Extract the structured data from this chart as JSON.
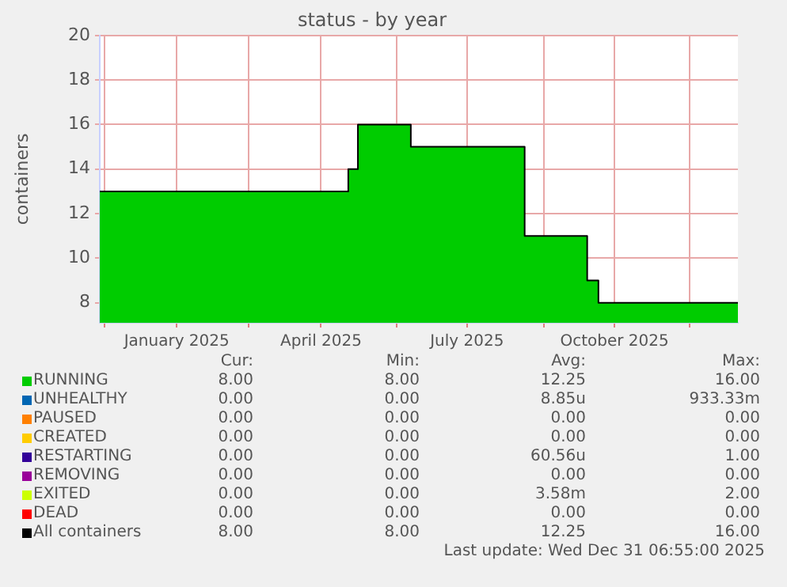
{
  "chart_data": {
    "type": "step",
    "title": "status - by year",
    "ylabel": "containers",
    "x": [
      "2024-11-28",
      "2025-05-02",
      "2025-05-08",
      "2025-06-10",
      "2025-08-20",
      "2025-09-28",
      "2025-10-05",
      "2025-12-31"
    ],
    "series": [
      {
        "name": "RUNNING",
        "type": "area",
        "color": "#00cc00",
        "values": [
          13,
          14,
          16,
          15,
          11,
          9,
          8,
          8
        ]
      },
      {
        "name": "UNHEALTHY",
        "color": "#0066b3",
        "values": [
          null,
          null,
          null,
          null,
          null,
          null,
          null,
          null
        ]
      },
      {
        "name": "PAUSED",
        "color": "#ff8000",
        "values": [
          null,
          null,
          null,
          null,
          null,
          null,
          null,
          null
        ]
      },
      {
        "name": "CREATED",
        "color": "#ffcc00",
        "values": [
          null,
          null,
          null,
          null,
          null,
          null,
          null,
          null
        ]
      },
      {
        "name": "RESTARTING",
        "color": "#330099",
        "values": [
          null,
          null,
          null,
          null,
          null,
          null,
          null,
          null
        ]
      },
      {
        "name": "REMOVING",
        "color": "#990099",
        "values": [
          null,
          null,
          null,
          null,
          null,
          null,
          null,
          null
        ]
      },
      {
        "name": "EXITED",
        "color": "#ccff00",
        "values": [
          null,
          null,
          null,
          null,
          null,
          null,
          null,
          null
        ]
      },
      {
        "name": "DEAD",
        "color": "#ff0000",
        "values": [
          null,
          null,
          null,
          null,
          null,
          null,
          null,
          null
        ]
      },
      {
        "name": "All containers",
        "color": "#000000",
        "values": [
          13,
          14,
          16,
          15,
          11,
          9,
          8,
          8
        ]
      }
    ],
    "xlim": [
      "2024-11-28",
      "2025-12-31"
    ],
    "xticks": [
      {
        "value": "2024-12-01",
        "label": null
      },
      {
        "value": "2025-01-15",
        "label": "January 2025"
      },
      {
        "value": "2025-03-01",
        "label": null
      },
      {
        "value": "2025-04-15",
        "label": "April 2025"
      },
      {
        "value": "2025-06-01",
        "label": null
      },
      {
        "value": "2025-07-15",
        "label": "July 2025"
      },
      {
        "value": "2025-09-01",
        "label": null
      },
      {
        "value": "2025-10-15",
        "label": "October 2025"
      },
      {
        "value": "2025-12-01",
        "label": null
      }
    ],
    "ylim": [
      7.1,
      20
    ],
    "yticks": [
      8,
      10,
      12,
      14,
      16,
      18,
      20
    ],
    "grid": true,
    "legend": "bottom",
    "annotations": [
      "Cur:",
      "Min:",
      "Avg:",
      "Max:",
      "8.00",
      "8.00",
      "12.25",
      "16.00",
      "0.00",
      "0.00",
      "8.85u",
      "933.33m",
      "0.00",
      "0.00",
      "0.00",
      "0.00",
      "0.00",
      "0.00",
      "0.00",
      "0.00",
      "0.00",
      "0.00",
      "60.56u",
      "1.00",
      "0.00",
      "0.00",
      "0.00",
      "0.00",
      "0.00",
      "0.00",
      "3.58m",
      "2.00",
      "0.00",
      "0.00",
      "0.00",
      "0.00",
      "8.00",
      "8.00",
      "12.25",
      "16.00",
      "Last update: Wed Dec 31 06:55:00 2025"
    ]
  }
}
